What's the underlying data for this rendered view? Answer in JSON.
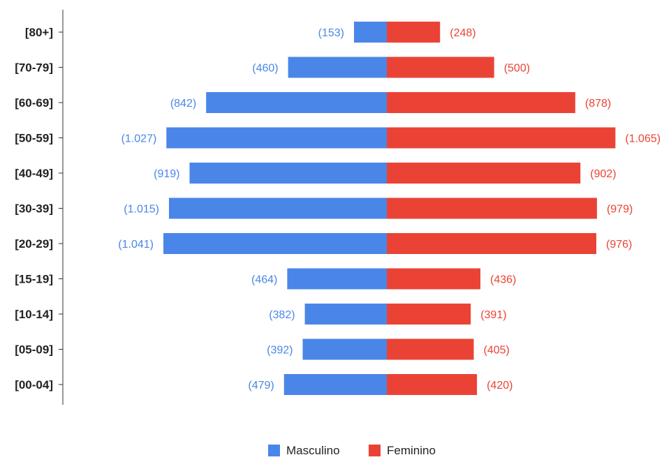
{
  "chart_data": {
    "type": "bar",
    "orientation": "horizontal",
    "title": "",
    "xlabel": "",
    "ylabel": "",
    "categories": [
      "[80+]",
      "[70-79]",
      "[60-69]",
      "[50-59]",
      "[40-49]",
      "[30-39]",
      "[20-29]",
      "[15-19]",
      "[10-14]",
      "[05-09]",
      "[00-04]"
    ],
    "series": [
      {
        "name": "Masculino",
        "color": "#4a86e8",
        "values": [
          153,
          460,
          842,
          1027,
          919,
          1015,
          1041,
          464,
          382,
          392,
          479
        ],
        "labels": [
          "(153)",
          "(460)",
          "(842)",
          "(1.027)",
          "(919)",
          "(1.015)",
          "(1.041)",
          "(464)",
          "(382)",
          "(392)",
          "(479)"
        ]
      },
      {
        "name": "Feminino",
        "color": "#ea4335",
        "values": [
          248,
          500,
          878,
          1065,
          902,
          979,
          976,
          436,
          391,
          405,
          420
        ],
        "labels": [
          "(248)",
          "(500)",
          "(878)",
          "(1.065)",
          "(902)",
          "(979)",
          "(976)",
          "(436)",
          "(391)",
          "(405)",
          "(420)"
        ]
      }
    ],
    "legend_position": "bottom",
    "grid": false
  }
}
